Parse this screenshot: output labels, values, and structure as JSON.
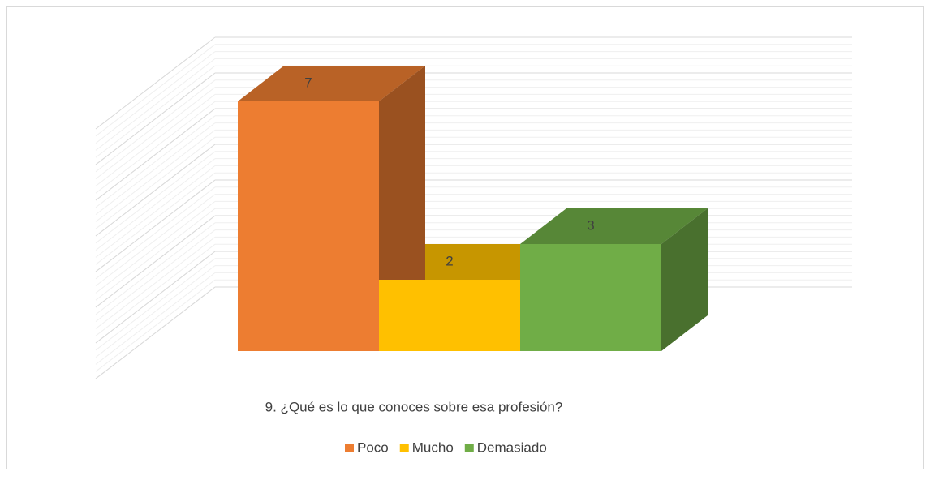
{
  "chart_data": {
    "type": "bar3d",
    "title": "9. ¿Qué es lo que conoces sobre esa profesión?",
    "categories": [
      "Poco",
      "Mucho",
      "Demasiado"
    ],
    "values": [
      7,
      2,
      3
    ],
    "colors": [
      "#ED7D31",
      "#FFC000",
      "#70AD47"
    ],
    "ylim": [
      0,
      7
    ],
    "yticks": [
      0,
      1,
      2,
      3,
      4,
      5,
      6,
      7
    ],
    "grid": true,
    "legend": "bottom"
  }
}
